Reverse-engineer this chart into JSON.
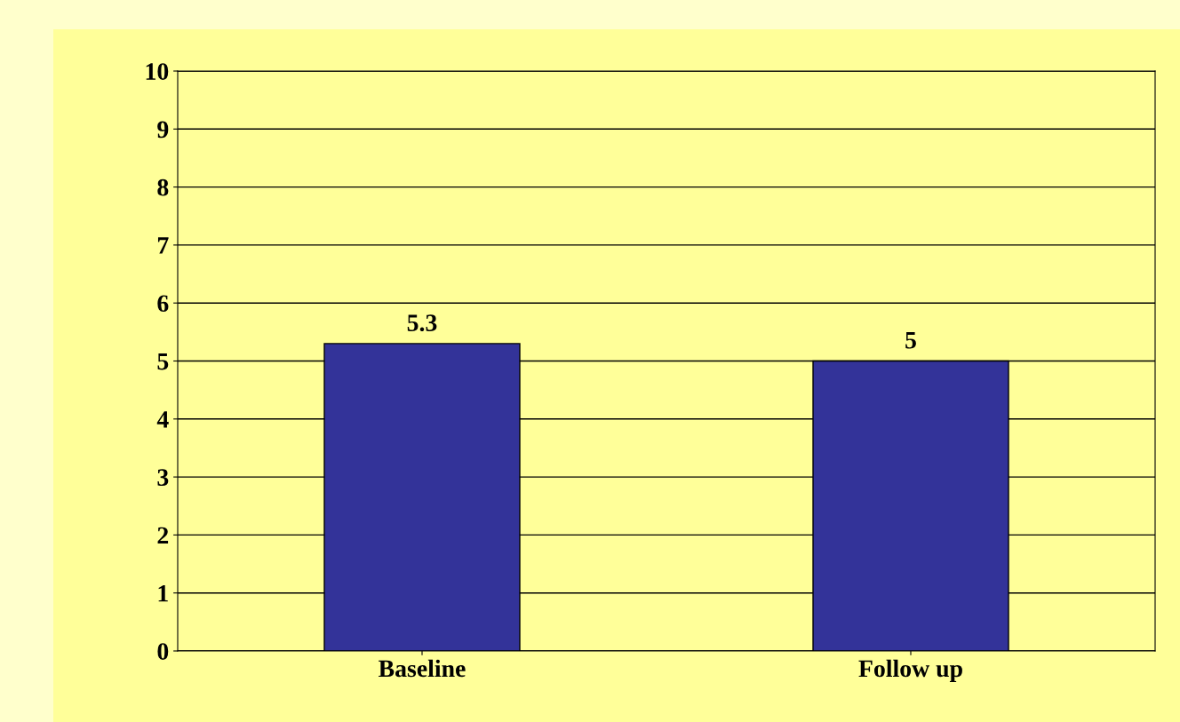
{
  "chart_data": {
    "type": "bar",
    "categories": [
      "Baseline",
      "Follow up"
    ],
    "values": [
      5.3,
      5
    ],
    "color": "#333399",
    "ylim": [
      0,
      10
    ],
    "yticks": [
      0,
      1,
      2,
      3,
      4,
      5,
      6,
      7,
      8,
      9,
      10
    ],
    "grid": "y",
    "data_labels": true
  }
}
